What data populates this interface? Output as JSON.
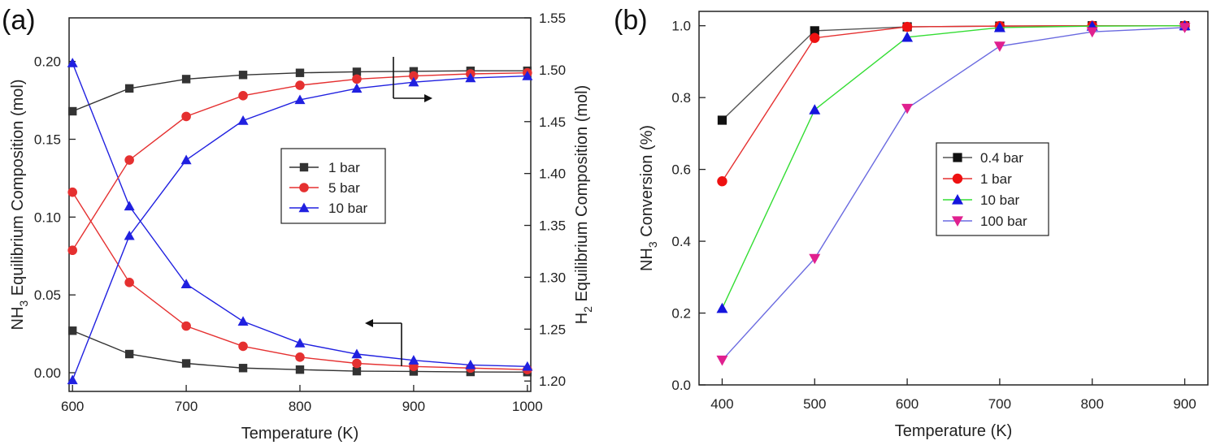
{
  "panels": [
    {
      "label": "(a)",
      "chart_data": {
        "type": "line",
        "xlabel": "Temperature (K)",
        "ylabel": "NH3 Equilibrium Composition (mol)",
        "ylabel_main": "NH",
        "ylabel_sub": "3",
        "ylabel_rest": " Equilibrium Composition (mol)",
        "y2label": "H2 Equilibrium Composition (mol)",
        "y2label_main": "H",
        "y2label_sub": "2",
        "y2label_rest": " Equilibrium Composition (mol)",
        "xlim": [
          597,
          1003
        ],
        "ylim": [
          -0.012,
          0.228
        ],
        "y2lim": [
          1.19,
          1.55
        ],
        "xticks": [
          "600",
          "700",
          "800",
          "900",
          "1000"
        ],
        "xtick_values": [
          600,
          700,
          800,
          900,
          1000
        ],
        "yticks": [
          "0.00",
          "0.05",
          "0.10",
          "0.15",
          "0.20"
        ],
        "ytick_values": [
          0,
          0.05,
          0.1,
          0.15,
          0.2
        ],
        "y2ticks": [
          "1.20",
          "1.25",
          "1.30",
          "1.35",
          "1.40",
          "1.45",
          "1.50",
          "1.55"
        ],
        "y2tick_values": [
          1.2,
          1.25,
          1.3,
          1.35,
          1.4,
          1.45,
          1.5,
          1.55
        ],
        "grid": false,
        "legend_position": "center",
        "x": [
          600,
          650,
          700,
          750,
          800,
          850,
          900,
          950,
          1000
        ],
        "series": [
          {
            "name": "1 bar",
            "axis": "left",
            "color": "#333333",
            "marker": "square",
            "values": [
              0.027,
              0.012,
              0.006,
              0.003,
              0.002,
              0.001,
              0.0008,
              0.0005,
              0.0004
            ]
          },
          {
            "name": "5 bar",
            "axis": "left",
            "color": "#e53030",
            "marker": "circle",
            "values": [
              0.116,
              0.058,
              0.03,
              0.017,
              0.01,
              0.006,
              0.004,
              0.003,
              0.002
            ]
          },
          {
            "name": "10 bar",
            "axis": "left",
            "color": "#2020e0",
            "marker": "triangle-up",
            "values": [
              0.199,
              0.107,
              0.057,
              0.033,
              0.019,
              0.012,
              0.008,
              0.005,
              0.004
            ]
          },
          {
            "name": "1 bar",
            "axis": "right",
            "color": "#333333",
            "marker": "square",
            "values": [
              1.46,
              1.482,
              1.491,
              1.495,
              1.497,
              1.498,
              1.4985,
              1.499,
              1.499
            ]
          },
          {
            "name": "5 bar",
            "axis": "right",
            "color": "#e53030",
            "marker": "circle",
            "values": [
              1.326,
              1.413,
              1.455,
              1.475,
              1.485,
              1.491,
              1.494,
              1.496,
              1.497
            ]
          },
          {
            "name": "10 bar",
            "axis": "right",
            "color": "#2020e0",
            "marker": "triangle-up",
            "values": [
              1.201,
              1.34,
              1.413,
              1.451,
              1.471,
              1.482,
              1.488,
              1.492,
              1.494
            ]
          }
        ],
        "legend": [
          {
            "name": "1 bar",
            "color": "#333333",
            "marker": "square"
          },
          {
            "name": "5 bar",
            "color": "#e53030",
            "marker": "circle"
          },
          {
            "name": "10 bar",
            "color": "#2020e0",
            "marker": "triangle-up"
          }
        ]
      }
    },
    {
      "label": "(b)",
      "chart_data": {
        "type": "line",
        "xlabel": "Temperature (K)",
        "ylabel": "NH3 Conversion (%)",
        "ylabel_main": "NH",
        "ylabel_sub": "3",
        "ylabel_rest": " Conversion (%)",
        "xlim": [
          375,
          925
        ],
        "ylim": [
          0,
          1.04
        ],
        "xticks": [
          "400",
          "500",
          "600",
          "700",
          "800",
          "900"
        ],
        "xtick_values": [
          400,
          500,
          600,
          700,
          800,
          900
        ],
        "yticks": [
          "0.0",
          "0.2",
          "0.4",
          "0.6",
          "0.8",
          "1.0"
        ],
        "ytick_values": [
          0,
          0.2,
          0.4,
          0.6,
          0.8,
          1.0
        ],
        "grid": false,
        "legend_position": "center-right",
        "x": [
          400,
          500,
          600,
          700,
          800,
          900
        ],
        "series": [
          {
            "name": "0.4 bar",
            "color": "#111111",
            "line_color": "#555555",
            "marker": "square",
            "values": [
              0.737,
              0.986,
              0.997,
              0.999,
              1.0,
              1.0
            ]
          },
          {
            "name": "1 bar",
            "color": "#ee1111",
            "line_color": "#e53030",
            "marker": "circle",
            "values": [
              0.567,
              0.966,
              0.997,
              0.999,
              1.0,
              1.0
            ]
          },
          {
            "name": "10 bar",
            "color": "#1515dd",
            "line_color": "#33dd33",
            "marker": "triangle-up",
            "values": [
              0.213,
              0.766,
              0.968,
              0.995,
              0.999,
              1.0
            ]
          },
          {
            "name": "100 bar",
            "color": "#e0208f",
            "line_color": "#6a6ae0",
            "marker": "triangle-down",
            "values": [
              0.069,
              0.352,
              0.77,
              0.943,
              0.983,
              0.995
            ]
          }
        ]
      }
    }
  ]
}
